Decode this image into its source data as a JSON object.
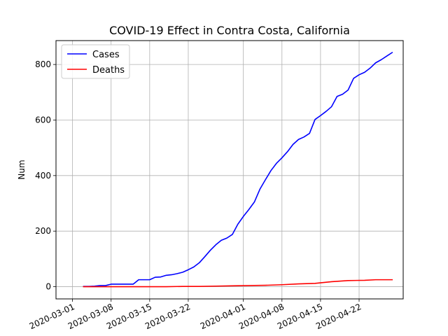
{
  "chart_data": {
    "type": "line",
    "title": "COVID-19 Effect in Contra Costa, California",
    "xlabel": "",
    "ylabel": "Num",
    "x_axis": {
      "type": "date",
      "range": [
        "2020-02-27",
        "2020-04-30"
      ],
      "ticks": [
        "2020-03-01",
        "2020-03-08",
        "2020-03-15",
        "2020-03-22",
        "2020-04-01",
        "2020-04-08",
        "2020-04-15",
        "2020-04-22"
      ]
    },
    "y_axis": {
      "range": [
        -44,
        886
      ],
      "ticks": [
        0,
        200,
        400,
        600,
        800
      ]
    },
    "grid": true,
    "legend": {
      "position": "top-left"
    },
    "series": [
      {
        "name": "Cases",
        "color": "#0000ff",
        "points": [
          [
            "2020-03-03",
            1
          ],
          [
            "2020-03-04",
            1
          ],
          [
            "2020-03-05",
            2
          ],
          [
            "2020-03-06",
            4
          ],
          [
            "2020-03-07",
            4
          ],
          [
            "2020-03-08",
            9
          ],
          [
            "2020-03-09",
            9
          ],
          [
            "2020-03-10",
            9
          ],
          [
            "2020-03-11",
            9
          ],
          [
            "2020-03-12",
            9
          ],
          [
            "2020-03-13",
            25
          ],
          [
            "2020-03-14",
            25
          ],
          [
            "2020-03-15",
            25
          ],
          [
            "2020-03-16",
            34
          ],
          [
            "2020-03-17",
            35
          ],
          [
            "2020-03-18",
            41
          ],
          [
            "2020-03-19",
            43
          ],
          [
            "2020-03-20",
            47
          ],
          [
            "2020-03-21",
            52
          ],
          [
            "2020-03-22",
            61
          ],
          [
            "2020-03-23",
            71
          ],
          [
            "2020-03-24",
            86
          ],
          [
            "2020-03-25",
            108
          ],
          [
            "2020-03-26",
            131
          ],
          [
            "2020-03-27",
            151
          ],
          [
            "2020-03-28",
            167
          ],
          [
            "2020-03-29",
            175
          ],
          [
            "2020-03-30",
            188
          ],
          [
            "2020-03-31",
            225
          ],
          [
            "2020-04-01",
            253
          ],
          [
            "2020-04-02",
            278
          ],
          [
            "2020-04-03",
            305
          ],
          [
            "2020-04-04",
            351
          ],
          [
            "2020-04-05",
            385
          ],
          [
            "2020-04-06",
            418
          ],
          [
            "2020-04-07",
            444
          ],
          [
            "2020-04-08",
            464
          ],
          [
            "2020-04-09",
            486
          ],
          [
            "2020-04-10",
            512
          ],
          [
            "2020-04-11",
            530
          ],
          [
            "2020-04-12",
            539
          ],
          [
            "2020-04-13",
            552
          ],
          [
            "2020-04-14",
            602
          ],
          [
            "2020-04-15",
            616
          ],
          [
            "2020-04-16",
            631
          ],
          [
            "2020-04-17",
            648
          ],
          [
            "2020-04-18",
            685
          ],
          [
            "2020-04-19",
            693
          ],
          [
            "2020-04-20",
            708
          ],
          [
            "2020-04-21",
            750
          ],
          [
            "2020-04-22",
            763
          ],
          [
            "2020-04-23",
            772
          ],
          [
            "2020-04-24",
            787
          ],
          [
            "2020-04-25",
            806
          ],
          [
            "2020-04-26",
            817
          ],
          [
            "2020-04-27",
            830
          ],
          [
            "2020-04-28",
            843
          ]
        ]
      },
      {
        "name": "Deaths",
        "color": "#ff0000",
        "points": [
          [
            "2020-03-03",
            0
          ],
          [
            "2020-03-06",
            0
          ],
          [
            "2020-03-09",
            0
          ],
          [
            "2020-03-12",
            0
          ],
          [
            "2020-03-15",
            0
          ],
          [
            "2020-03-18",
            0
          ],
          [
            "2020-03-21",
            1
          ],
          [
            "2020-03-24",
            1
          ],
          [
            "2020-03-27",
            2
          ],
          [
            "2020-03-30",
            3
          ],
          [
            "2020-04-02",
            4
          ],
          [
            "2020-04-05",
            5
          ],
          [
            "2020-04-08",
            7
          ],
          [
            "2020-04-11",
            10
          ],
          [
            "2020-04-14",
            12
          ],
          [
            "2020-04-17",
            18
          ],
          [
            "2020-04-20",
            22
          ],
          [
            "2020-04-23",
            23
          ],
          [
            "2020-04-25",
            25
          ],
          [
            "2020-04-28",
            25
          ]
        ]
      }
    ]
  }
}
